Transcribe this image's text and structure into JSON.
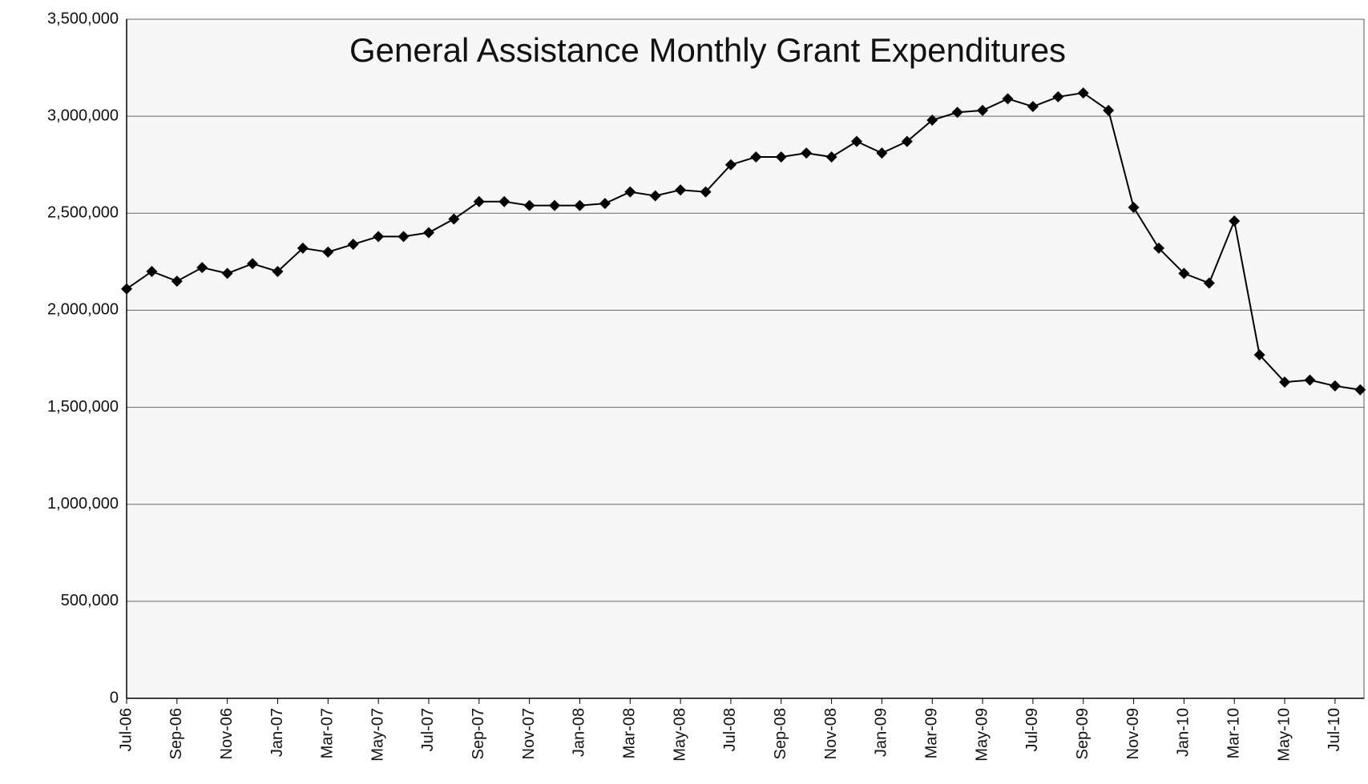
{
  "chart_data": {
    "type": "line",
    "title": "General Assistance Monthly Grant Expenditures",
    "categories": [
      "Jul-06",
      null,
      "Sep-06",
      null,
      "Nov-06",
      null,
      "Jan-07",
      null,
      "Mar-07",
      null,
      "May-07",
      null,
      "Jul-07",
      null,
      "Sep-07",
      null,
      "Nov-07",
      null,
      "Jan-08",
      null,
      "Mar-08",
      null,
      "May-08",
      null,
      "Jul-08",
      null,
      "Sep-08",
      null,
      "Nov-08",
      null,
      "Jan-09",
      null,
      "Mar-09",
      null,
      "May-09",
      null,
      "Jul-09",
      null,
      "Sep-09",
      null,
      "Nov-09",
      null,
      "Jan-10",
      null,
      "Mar-10",
      null,
      "May-10",
      null,
      "Jul-10",
      null
    ],
    "values": [
      2110000,
      2200000,
      2150000,
      2220000,
      2190000,
      2240000,
      2200000,
      2320000,
      2300000,
      2340000,
      2380000,
      2380000,
      2400000,
      2470000,
      2560000,
      2560000,
      2540000,
      2540000,
      2540000,
      2550000,
      2610000,
      2590000,
      2620000,
      2610000,
      2750000,
      2790000,
      2790000,
      2810000,
      2790000,
      2870000,
      2810000,
      2870000,
      2980000,
      3020000,
      3030000,
      3090000,
      3050000,
      3100000,
      3120000,
      3030000,
      2530000,
      2320000,
      2190000,
      2140000,
      2460000,
      1770000,
      1630000,
      1640000,
      1610000,
      1590000
    ],
    "color": "#000000",
    "ylim": [
      0,
      3500000
    ],
    "yticks": [
      0,
      {
        "value": 500000,
        "label": "500,000"
      },
      {
        "value": 1000000,
        "label": "1,000,000"
      },
      {
        "value": 1500000,
        "label": "1,500,000"
      },
      {
        "value": 2000000,
        "label": "2,000,000"
      },
      {
        "value": 2500000,
        "label": "2,500,000"
      },
      {
        "value": 3000000,
        "label": "3,000,000"
      },
      {
        "value": 3500000,
        "label": "3,500,000"
      }
    ],
    "grid": true
  }
}
